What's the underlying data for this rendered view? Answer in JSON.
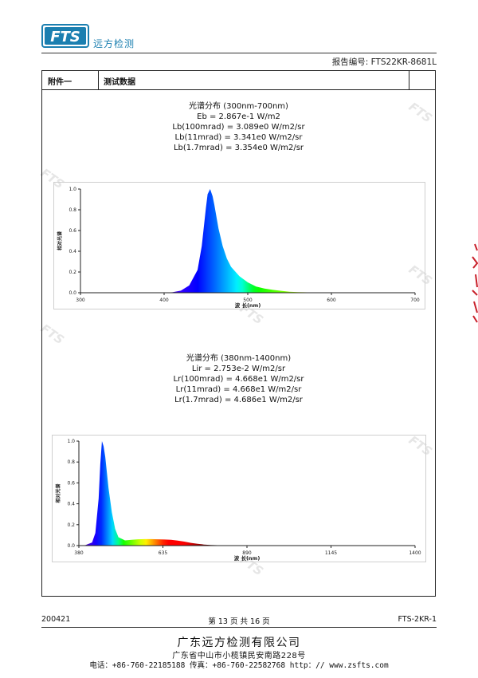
{
  "header": {
    "logo_text": "FTS",
    "company_short": "远方检测",
    "report_no": "报告编号: FTS22KR-8681L"
  },
  "table_head": {
    "left": "附件一",
    "middle": "测试数据",
    "right": ""
  },
  "spectrum1": {
    "title": "光谱分布 (300nm-700nm)",
    "lines": [
      "Eb = 2.867e-1 W/m2",
      "Lb(100mrad) = 3.089e0 W/m2/sr",
      "Lb(11mrad) = 3.341e0 W/m2/sr",
      "Lb(1.7mrad) = 3.354e0 W/m2/sr"
    ]
  },
  "spectrum2": {
    "title": "光谱分布 (380nm-1400nm)",
    "lines": [
      "Lir = 2.753e-2 W/m2/sr",
      "Lr(100mrad) = 4.668e1 W/m2/sr",
      "Lr(11mrad) = 4.668e1 W/m2/sr",
      "Lr(1.7mrad) = 4.686e1 W/m2/sr"
    ]
  },
  "chart_data": [
    {
      "type": "area",
      "title": "",
      "xlabel": "波 长(nm)",
      "ylabel": "相对光谱",
      "xlim": [
        300,
        700
      ],
      "ylim": [
        0,
        1.0
      ],
      "x_ticks": [
        "300",
        "400",
        "500",
        "600",
        "700"
      ],
      "y_ticks": [
        "0.0",
        "0.2",
        "0.4",
        "0.6",
        "0.8",
        "1.0"
      ],
      "grid": false,
      "x": [
        400,
        410,
        420,
        430,
        440,
        445,
        450,
        452,
        455,
        458,
        460,
        465,
        470,
        475,
        480,
        490,
        500,
        510,
        520,
        530,
        540,
        550,
        560,
        580,
        600,
        650,
        700
      ],
      "y": [
        0.0,
        0.005,
        0.02,
        0.07,
        0.22,
        0.45,
        0.82,
        0.95,
        1.0,
        0.93,
        0.85,
        0.62,
        0.45,
        0.33,
        0.25,
        0.16,
        0.1,
        0.06,
        0.04,
        0.028,
        0.018,
        0.01,
        0.006,
        0.002,
        0.0,
        0.0,
        0.0
      ]
    },
    {
      "type": "area",
      "title": "",
      "xlabel": "波 长(nm)",
      "ylabel": "相对光谱",
      "xlim": [
        380,
        1400
      ],
      "ylim": [
        0,
        1.0
      ],
      "x_ticks": [
        "380",
        "635",
        "890",
        "1145",
        "1400"
      ],
      "y_ticks": [
        "0.0",
        "0.2",
        "0.4",
        "0.6",
        "0.8",
        "1.0"
      ],
      "grid": false,
      "x": [
        380,
        400,
        420,
        430,
        440,
        445,
        450,
        455,
        460,
        470,
        480,
        490,
        500,
        520,
        540,
        560,
        580,
        600,
        620,
        640,
        660,
        680,
        700,
        720,
        740,
        760,
        780,
        800,
        850,
        900,
        1000,
        1100,
        1200,
        1300,
        1400
      ],
      "y": [
        0.0,
        0.005,
        0.03,
        0.12,
        0.45,
        0.78,
        1.0,
        0.95,
        0.85,
        0.55,
        0.32,
        0.16,
        0.08,
        0.05,
        0.055,
        0.06,
        0.062,
        0.062,
        0.06,
        0.058,
        0.055,
        0.048,
        0.038,
        0.026,
        0.017,
        0.01,
        0.006,
        0.004,
        0.002,
        0.001,
        0.0,
        0.0,
        0.0,
        0.0,
        0.0
      ]
    }
  ],
  "footer": {
    "left": "200421",
    "page": "第 13 页 共 16 页",
    "right": "FTS-2KR-1",
    "company": "广东远方检测有限公司",
    "address": "广东省中山市小榄镇民安南路228号",
    "contact": "电话：+86-760-22185188   传真：+86-760-22582768   http：// www.zsfts.com"
  },
  "watermark_text": "FTS",
  "colors": {
    "logo_blue": "#1b7fb0",
    "peak_blue": "#0018d8",
    "edge_red": "#c8202a"
  }
}
